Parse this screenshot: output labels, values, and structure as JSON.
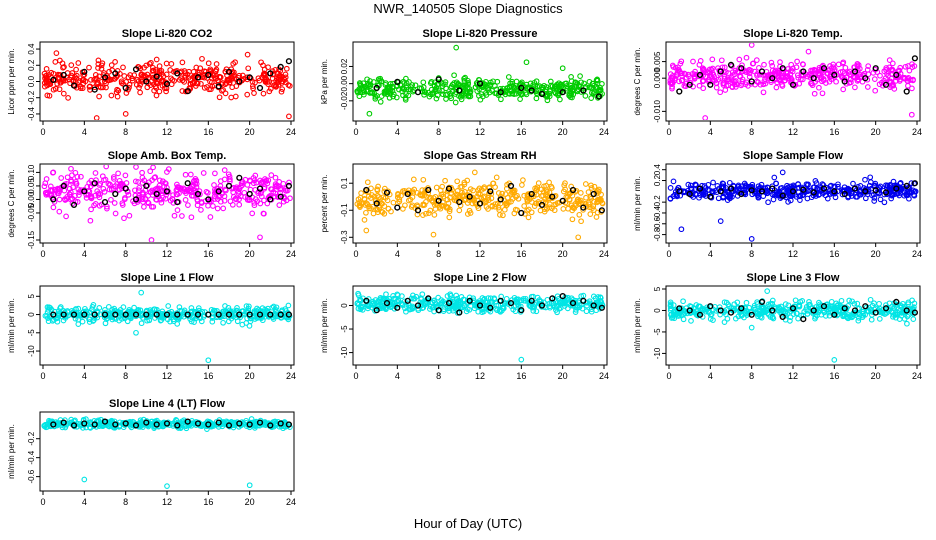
{
  "title": "NWR_140505  Slope Diagnostics",
  "xlabel": "Hour of Day (UTC)",
  "chart_data": [
    {
      "type": "scatter",
      "title": "Slope Li-820 CO2",
      "ylabel": "Licor ppm per min.",
      "color": "#ff0000",
      "xlim": [
        0,
        24
      ],
      "ylim": [
        -0.45,
        0.45
      ],
      "xticks": [
        0,
        4,
        8,
        12,
        16,
        20,
        24
      ],
      "yticks": [
        "-0.4",
        "-0.2",
        "0.0",
        "0.2",
        "0.4"
      ],
      "ytick_values": [
        -0.4,
        -0.2,
        0.0,
        0.2,
        0.4
      ],
      "spread": 0.14,
      "outliers": [
        [
          5.2,
          -0.45
        ],
        [
          8,
          -0.4
        ],
        [
          23.8,
          -0.43
        ],
        [
          1.3,
          0.35
        ]
      ],
      "black_points": [
        [
          1,
          0.02
        ],
        [
          2,
          0.08
        ],
        [
          3,
          -0.05
        ],
        [
          4,
          0.12
        ],
        [
          5,
          -0.1
        ],
        [
          6,
          0.05
        ],
        [
          7,
          0.1
        ],
        [
          8,
          -0.08
        ],
        [
          9,
          0.15
        ],
        [
          10,
          0.0
        ],
        [
          11,
          0.06
        ],
        [
          12,
          -0.03
        ],
        [
          13,
          0.1
        ],
        [
          14,
          -0.12
        ],
        [
          15,
          0.05
        ],
        [
          16,
          0.08
        ],
        [
          17,
          -0.06
        ],
        [
          18,
          0.12
        ],
        [
          19,
          0.0
        ],
        [
          20,
          0.05
        ],
        [
          21,
          -0.08
        ],
        [
          22,
          0.1
        ],
        [
          23,
          0.18
        ],
        [
          23.8,
          0.25
        ]
      ]
    },
    {
      "type": "scatter",
      "title": "Slope Li-820 Pressure",
      "ylabel": "kPa per min.",
      "color": "#00cc00",
      "xlim": [
        0,
        24
      ],
      "ylim": [
        -0.04,
        0.045
      ],
      "xticks": [
        0,
        4,
        8,
        12,
        16,
        20,
        24
      ],
      "yticks": [
        "-0.02",
        "0.00",
        "0.02"
      ],
      "ytick_values": [
        -0.02,
        0.0,
        0.02
      ],
      "spread": 0.008,
      "outliers": [
        [
          9.7,
          0.042
        ],
        [
          1.3,
          -0.035
        ],
        [
          16.5,
          0.025
        ],
        [
          20,
          0.018
        ]
      ],
      "black_points": [
        [
          2,
          -0.005
        ],
        [
          4,
          0.002
        ],
        [
          6,
          -0.01
        ],
        [
          8,
          0.005
        ],
        [
          10,
          -0.008
        ],
        [
          12,
          0.0
        ],
        [
          14,
          -0.01
        ],
        [
          16,
          -0.005
        ],
        [
          17,
          -0.008
        ],
        [
          18,
          -0.012
        ],
        [
          20,
          -0.01
        ],
        [
          22,
          -0.008
        ],
        [
          23.5,
          -0.015
        ]
      ]
    },
    {
      "type": "scatter",
      "title": "Slope Li-820 Temp.",
      "ylabel": "degrees C per min.",
      "color": "#ff00ff",
      "xlim": [
        0,
        24
      ],
      "ylim": [
        -0.012,
        0.01
      ],
      "xticks": [
        0,
        4,
        8,
        12,
        16,
        20,
        24
      ],
      "yticks": [
        "-0.010",
        "0.000",
        "0.005"
      ],
      "ytick_values": [
        -0.01,
        0.0,
        0.005
      ],
      "spread": 0.003,
      "outliers": [
        [
          3.5,
          -0.012
        ],
        [
          8,
          0.01
        ],
        [
          23.5,
          -0.011
        ],
        [
          13.5,
          0.008
        ]
      ],
      "black_points": [
        [
          1,
          -0.004
        ],
        [
          2,
          -0.002
        ],
        [
          3,
          0.001
        ],
        [
          4,
          -0.002
        ],
        [
          5,
          0.002
        ],
        [
          6,
          0.004
        ],
        [
          7,
          0.003
        ],
        [
          8,
          -0.001
        ],
        [
          9,
          0.002
        ],
        [
          10,
          0.0
        ],
        [
          11,
          0.003
        ],
        [
          12,
          -0.002
        ],
        [
          13,
          0.002
        ],
        [
          14,
          0.0
        ],
        [
          15,
          0.003
        ],
        [
          16,
          0.001
        ],
        [
          17,
          -0.001
        ],
        [
          18,
          0.002
        ],
        [
          19,
          0.0
        ],
        [
          20,
          0.003
        ],
        [
          21,
          -0.002
        ],
        [
          22,
          0.001
        ],
        [
          23,
          -0.004
        ],
        [
          23.8,
          0.006
        ]
      ]
    },
    {
      "type": "scatter",
      "title": "Slope Amb. Box Temp.",
      "ylabel": "degrees C per min.",
      "color": "#ff00ff",
      "xlim": [
        0,
        24
      ],
      "ylim": [
        -0.15,
        0.12
      ],
      "xticks": [
        0,
        4,
        8,
        12,
        16,
        20,
        24
      ],
      "yticks": [
        "-0.15",
        "-0.05",
        "0.00",
        "0.05",
        "0.10"
      ],
      "ytick_values": [
        -0.15,
        -0.05,
        0.0,
        0.05,
        0.1
      ],
      "spread": 0.05,
      "outliers": [
        [
          10.5,
          -0.15
        ],
        [
          21,
          -0.14
        ],
        [
          9,
          0.12
        ],
        [
          1,
          0.1
        ]
      ],
      "black_points": [
        [
          1,
          0.0
        ],
        [
          2,
          0.05
        ],
        [
          3,
          -0.02
        ],
        [
          4,
          0.03
        ],
        [
          5,
          0.06
        ],
        [
          6,
          -0.01
        ],
        [
          7,
          0.02
        ],
        [
          8,
          0.04
        ],
        [
          9,
          0.0
        ],
        [
          10,
          0.05
        ],
        [
          11,
          0.02
        ],
        [
          12,
          0.03
        ],
        [
          13,
          -0.01
        ],
        [
          14,
          0.06
        ],
        [
          15,
          0.02
        ],
        [
          16,
          0.0
        ],
        [
          17,
          0.03
        ],
        [
          18,
          0.05
        ],
        [
          19,
          0.08
        ],
        [
          20,
          0.02
        ],
        [
          21,
          0.04
        ],
        [
          22,
          0.0
        ],
        [
          23,
          0.01
        ],
        [
          23.8,
          0.05
        ]
      ]
    },
    {
      "type": "scatter",
      "title": "Slope Gas Stream RH",
      "ylabel": "percent per min.",
      "color": "#ffaa00",
      "xlim": [
        0,
        24
      ],
      "ylim": [
        -0.32,
        0.22
      ],
      "xticks": [
        0,
        4,
        8,
        12,
        16,
        20,
        24
      ],
      "yticks": [
        "-0.3",
        "-0.1",
        "0.1"
      ],
      "ytick_values": [
        -0.3,
        -0.1,
        0.1
      ],
      "spread": 0.09,
      "outliers": [
        [
          1,
          -0.25
        ],
        [
          7.5,
          -0.28
        ],
        [
          21.5,
          -0.3
        ],
        [
          11.5,
          0.18
        ]
      ],
      "black_points": [
        [
          1,
          0.05
        ],
        [
          2,
          -0.05
        ],
        [
          3,
          0.03
        ],
        [
          4,
          -0.08
        ],
        [
          5,
          0.02
        ],
        [
          6,
          -0.1
        ],
        [
          7,
          0.05
        ],
        [
          8,
          -0.03
        ],
        [
          9,
          0.06
        ],
        [
          10,
          -0.04
        ],
        [
          11,
          0.0
        ],
        [
          12,
          -0.05
        ],
        [
          13,
          0.04
        ],
        [
          14,
          -0.02
        ],
        [
          15,
          0.08
        ],
        [
          16,
          -0.12
        ],
        [
          17,
          0.02
        ],
        [
          18,
          -0.06
        ],
        [
          19,
          0.0
        ],
        [
          20,
          -0.03
        ],
        [
          21,
          0.05
        ],
        [
          22,
          -0.08
        ],
        [
          23,
          0.02
        ],
        [
          23.8,
          -0.1
        ]
      ]
    },
    {
      "type": "scatter",
      "title": "Slope Sample Flow",
      "ylabel": "ml/min per min.",
      "color": "#0000ee",
      "xlim": [
        0,
        24
      ],
      "ylim": [
        -0.9,
        0.45
      ],
      "xticks": [
        0,
        4,
        8,
        12,
        16,
        20,
        24
      ],
      "yticks": [
        "-0.8",
        "-0.6",
        "-0.4",
        "-0.2",
        "0.2",
        "0.4"
      ],
      "ytick_values": [
        -0.8,
        -0.6,
        -0.4,
        -0.2,
        0.2,
        0.4
      ],
      "spread": 0.12,
      "outliers": [
        [
          8,
          -0.88
        ],
        [
          1.2,
          -0.7
        ],
        [
          5,
          -0.55
        ],
        [
          11,
          0.35
        ]
      ],
      "black_points": [
        [
          1,
          0.0
        ],
        [
          2,
          -0.05
        ],
        [
          3,
          0.05
        ],
        [
          4,
          -0.1
        ],
        [
          5,
          0.0
        ],
        [
          6,
          0.05
        ],
        [
          7,
          -0.05
        ],
        [
          8,
          0.02
        ],
        [
          9,
          0.0
        ],
        [
          10,
          0.05
        ],
        [
          11,
          -0.08
        ],
        [
          12,
          0.0
        ],
        [
          13,
          0.03
        ],
        [
          14,
          -0.02
        ],
        [
          15,
          0.05
        ],
        [
          16,
          0.0
        ],
        [
          17,
          -0.05
        ],
        [
          18,
          0.05
        ],
        [
          19,
          0.0
        ],
        [
          20,
          0.02
        ],
        [
          21,
          -0.02
        ],
        [
          22,
          0.05
        ],
        [
          23,
          0.1
        ],
        [
          23.8,
          0.15
        ]
      ]
    },
    {
      "type": "scatter",
      "title": "Slope Line 1 Flow",
      "ylabel": "ml/min per min.",
      "color": "#00e5e5",
      "xlim": [
        0,
        24
      ],
      "ylim": [
        -13,
        7
      ],
      "xticks": [
        0,
        4,
        8,
        12,
        16,
        20,
        24
      ],
      "yticks": [
        "-10",
        "-5",
        "0",
        "5"
      ],
      "ytick_values": [
        -10,
        -5,
        0,
        5
      ],
      "spread": 1.5,
      "outliers": [
        [
          16,
          -12.5
        ],
        [
          9.5,
          6
        ],
        [
          9,
          -5
        ]
      ],
      "black_points": [
        [
          1,
          0.0
        ],
        [
          2,
          0.0
        ],
        [
          3,
          0.0
        ],
        [
          4,
          0.0
        ],
        [
          5,
          0.0
        ],
        [
          6,
          0.0
        ],
        [
          7,
          0.0
        ],
        [
          8,
          0.0
        ],
        [
          9,
          0.0
        ],
        [
          10,
          0.0
        ],
        [
          11,
          0.0
        ],
        [
          12,
          0.0
        ],
        [
          13,
          0.0
        ],
        [
          14,
          0.0
        ],
        [
          15,
          0.0
        ],
        [
          16,
          0.0
        ],
        [
          17,
          0.0
        ],
        [
          18,
          0.0
        ],
        [
          19,
          0.0
        ],
        [
          20,
          0.0
        ],
        [
          21,
          0.0
        ],
        [
          22,
          0.0
        ],
        [
          23,
          0.0
        ],
        [
          23.8,
          0.0
        ]
      ]
    },
    {
      "type": "scatter",
      "title": "Slope Line 2 Flow",
      "ylabel": "ml/min per min.",
      "color": "#00e5e5",
      "xlim": [
        0,
        24
      ],
      "ylim": [
        -12,
        3.5
      ],
      "xticks": [
        0,
        4,
        8,
        12,
        16,
        20,
        24
      ],
      "yticks": [
        "-10",
        "-5",
        "0"
      ],
      "ytick_values": [
        -10,
        -5,
        0
      ],
      "spread": 1.2,
      "outliers": [
        [
          16,
          -11.5
        ],
        [
          0.2,
          2.5
        ]
      ],
      "black_points": [
        [
          1,
          1.0
        ],
        [
          2,
          -1.0
        ],
        [
          3,
          0.5
        ],
        [
          4,
          -0.5
        ],
        [
          5,
          1.0
        ],
        [
          6,
          0.0
        ],
        [
          7,
          1.5
        ],
        [
          8,
          -1.0
        ],
        [
          9,
          0.5
        ],
        [
          10,
          -1.5
        ],
        [
          11,
          1.0
        ],
        [
          12,
          0.0
        ],
        [
          13,
          -0.5
        ],
        [
          14,
          1.0
        ],
        [
          15,
          0.5
        ],
        [
          16,
          -1.0
        ],
        [
          17,
          1.0
        ],
        [
          18,
          0.0
        ],
        [
          19,
          1.5
        ],
        [
          20,
          2.0
        ],
        [
          21,
          0.5
        ],
        [
          22,
          1.0
        ],
        [
          23,
          0.0
        ],
        [
          23.8,
          -0.5
        ]
      ]
    },
    {
      "type": "scatter",
      "title": "Slope Line 3 Flow",
      "ylabel": "ml/min per min.",
      "color": "#00e5e5",
      "xlim": [
        0,
        24
      ],
      "ylim": [
        -12,
        5
      ],
      "xticks": [
        0,
        4,
        8,
        12,
        16,
        20,
        24
      ],
      "yticks": [
        "-10",
        "-5",
        "0",
        "5"
      ],
      "ytick_values": [
        -10,
        -5,
        0,
        5
      ],
      "spread": 1.5,
      "outliers": [
        [
          16,
          -11.5
        ],
        [
          9.5,
          4.5
        ],
        [
          8,
          -4
        ]
      ],
      "black_points": [
        [
          1,
          0.5
        ],
        [
          2,
          0.0
        ],
        [
          3,
          -1.0
        ],
        [
          4,
          1.0
        ],
        [
          5,
          0.0
        ],
        [
          6,
          -0.5
        ],
        [
          7,
          0.5
        ],
        [
          8,
          -1.0
        ],
        [
          9,
          2.0
        ],
        [
          10,
          0.0
        ],
        [
          11,
          -1.5
        ],
        [
          12,
          0.5
        ],
        [
          13,
          -2.0
        ],
        [
          14,
          0.0
        ],
        [
          15,
          1.0
        ],
        [
          16,
          -1.0
        ],
        [
          17,
          0.5
        ],
        [
          18,
          0.0
        ],
        [
          19,
          1.0
        ],
        [
          20,
          -0.5
        ],
        [
          21,
          0.5
        ],
        [
          22,
          2.0
        ],
        [
          23,
          0.0
        ],
        [
          23.8,
          -0.5
        ]
      ]
    },
    {
      "type": "scatter",
      "title": "Slope Line 4 (LT) Flow",
      "ylabel": "ml/min per min.",
      "color": "#00e5e5",
      "xlim": [
        0,
        24
      ],
      "ylim": [
        -0.72,
        0.05
      ],
      "xticks": [
        0,
        4,
        8,
        12,
        16,
        20,
        24
      ],
      "yticks": [
        "-0.6",
        "-0.4",
        "-0.2"
      ],
      "ytick_values": [
        -0.6,
        -0.4,
        -0.2
      ],
      "spread": 0.03,
      "outliers": [
        [
          4,
          -0.63
        ],
        [
          12,
          -0.7
        ],
        [
          20,
          -0.69
        ]
      ],
      "black_points": [
        [
          1,
          -0.05
        ],
        [
          2,
          -0.03
        ],
        [
          3,
          -0.06
        ],
        [
          4,
          -0.04
        ],
        [
          5,
          -0.05
        ],
        [
          6,
          -0.02
        ],
        [
          7,
          -0.05
        ],
        [
          8,
          -0.04
        ],
        [
          9,
          -0.06
        ],
        [
          10,
          -0.03
        ],
        [
          11,
          -0.05
        ],
        [
          12,
          -0.04
        ],
        [
          13,
          -0.06
        ],
        [
          14,
          -0.02
        ],
        [
          15,
          -0.04
        ],
        [
          16,
          -0.05
        ],
        [
          17,
          -0.03
        ],
        [
          18,
          -0.06
        ],
        [
          19,
          -0.04
        ],
        [
          20,
          -0.05
        ],
        [
          21,
          -0.03
        ],
        [
          22,
          -0.06
        ],
        [
          23,
          -0.04
        ],
        [
          23.8,
          -0.05
        ]
      ]
    }
  ]
}
